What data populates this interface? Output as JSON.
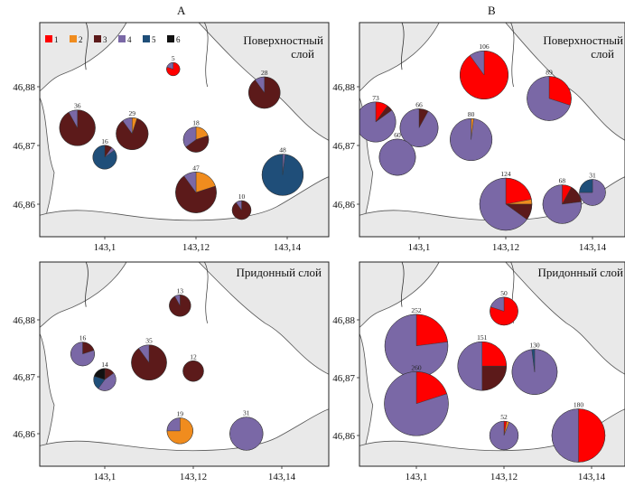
{
  "columns": [
    "А",
    "В"
  ],
  "colors": {
    "1": "#ff0000",
    "2": "#f08c1e",
    "3": "#5c1a1a",
    "4": "#7a68a6",
    "5": "#1f4e79",
    "6": "#111111",
    "water": "#ffffff",
    "land": "#e9e9e9"
  },
  "legend": [
    {
      "key": "1",
      "label": "1"
    },
    {
      "key": "2",
      "label": "2"
    },
    {
      "key": "3",
      "label": "3"
    },
    {
      "key": "4",
      "label": "4"
    },
    {
      "key": "5",
      "label": "5"
    },
    {
      "key": "6",
      "label": "6"
    }
  ],
  "axes": {
    "y_ticks": [
      "46,88",
      "46,87",
      "46,86"
    ],
    "x_ticks": [
      "143,1",
      "143,12",
      "143,14"
    ]
  },
  "panels": [
    {
      "id": "A-surface",
      "layer": "Поверхностный слой",
      "has_legend": true,
      "pies": [
        {
          "label": "5",
          "total": 5,
          "lon": 143.115,
          "lat": 46.883,
          "shares": {
            "1": 0.8,
            "4": 0.2
          }
        },
        {
          "label": "28",
          "total": 28,
          "lon": 143.135,
          "lat": 46.879,
          "shares": {
            "3": 0.9,
            "4": 0.1
          }
        },
        {
          "label": "36",
          "total": 36,
          "lon": 143.094,
          "lat": 46.873,
          "shares": {
            "3": 0.92,
            "4": 0.08
          }
        },
        {
          "label": "29",
          "total": 29,
          "lon": 143.106,
          "lat": 46.872,
          "shares": {
            "3": 0.85,
            "2": 0.05,
            "4": 0.1
          }
        },
        {
          "label": "18",
          "total": 18,
          "lon": 143.12,
          "lat": 46.871,
          "shares": {
            "3": 0.45,
            "2": 0.2,
            "4": 0.35
          }
        },
        {
          "label": "16",
          "total": 16,
          "lon": 143.1,
          "lat": 46.868,
          "shares": {
            "5": 0.85,
            "3": 0.1,
            "4": 0.05
          }
        },
        {
          "label": "47",
          "total": 47,
          "lon": 143.12,
          "lat": 46.862,
          "shares": {
            "3": 0.7,
            "2": 0.2,
            "4": 0.1
          }
        },
        {
          "label": "48",
          "total": 48,
          "lon": 143.139,
          "lat": 46.865,
          "shares": {
            "5": 0.98,
            "4": 0.02
          }
        },
        {
          "label": "10",
          "total": 10,
          "lon": 143.13,
          "lat": 46.859,
          "shares": {
            "3": 0.9,
            "4": 0.1
          }
        }
      ]
    },
    {
      "id": "B-surface",
      "layer": "Поверхностный слой",
      "has_legend": false,
      "pies": [
        {
          "label": "106",
          "total": 106,
          "lon": 143.115,
          "lat": 46.882,
          "shares": {
            "1": 0.9,
            "4": 0.1
          }
        },
        {
          "label": "89",
          "total": 89,
          "lon": 143.13,
          "lat": 46.878,
          "shares": {
            "1": 0.3,
            "4": 0.7
          }
        },
        {
          "label": "73",
          "total": 73,
          "lon": 143.09,
          "lat": 46.874,
          "shares": {
            "1": 0.1,
            "3": 0.05,
            "4": 0.85
          }
        },
        {
          "label": "66",
          "total": 66,
          "lon": 143.1,
          "lat": 46.873,
          "shares": {
            "3": 0.08,
            "4": 0.92
          }
        },
        {
          "label": "80",
          "total": 80,
          "lon": 143.112,
          "lat": 46.871,
          "shares": {
            "2": 0.02,
            "4": 0.98
          }
        },
        {
          "label": "60",
          "total": 60,
          "lon": 143.095,
          "lat": 46.868,
          "shares": {
            "4": 1.0
          }
        },
        {
          "label": "124",
          "total": 124,
          "lon": 143.12,
          "lat": 46.86,
          "shares": {
            "1": 0.22,
            "2": 0.03,
            "3": 0.1,
            "4": 0.65
          }
        },
        {
          "label": "68",
          "total": 68,
          "lon": 143.133,
          "lat": 46.86,
          "shares": {
            "1": 0.08,
            "3": 0.15,
            "4": 0.77
          }
        },
        {
          "label": "31",
          "total": 31,
          "lon": 143.14,
          "lat": 46.862,
          "shares": {
            "5": 0.25,
            "4": 0.75
          }
        }
      ]
    },
    {
      "id": "A-bottom",
      "layer": "Придонный слой",
      "has_legend": false,
      "pies": [
        {
          "label": "13",
          "total": 13,
          "lon": 143.117,
          "lat": 46.8825,
          "shares": {
            "3": 0.92,
            "4": 0.08
          }
        },
        {
          "label": "16",
          "total": 16,
          "lon": 143.095,
          "lat": 46.874,
          "shares": {
            "4": 0.8,
            "3": 0.2
          }
        },
        {
          "label": "35",
          "total": 35,
          "lon": 143.11,
          "lat": 46.8725,
          "shares": {
            "3": 0.9,
            "4": 0.1
          }
        },
        {
          "label": "12",
          "total": 12,
          "lon": 143.12,
          "lat": 46.871,
          "shares": {
            "3": 1.0
          }
        },
        {
          "label": "14",
          "total": 14,
          "lon": 143.1,
          "lat": 46.8695,
          "shares": {
            "4": 0.45,
            "6": 0.2,
            "3": 0.15,
            "5": 0.2
          }
        },
        {
          "label": "19",
          "total": 19,
          "lon": 143.117,
          "lat": 46.8605,
          "shares": {
            "2": 0.75,
            "4": 0.25
          }
        },
        {
          "label": "31",
          "total": 31,
          "lon": 143.132,
          "lat": 46.86,
          "shares": {
            "4": 1.0
          }
        }
      ]
    },
    {
      "id": "B-bottom",
      "layer": "Придонный слой",
      "has_legend": false,
      "pies": [
        {
          "label": "50",
          "total": 50,
          "lon": 143.12,
          "lat": 46.8815,
          "shares": {
            "1": 0.8,
            "4": 0.2
          }
        },
        {
          "label": "252",
          "total": 252,
          "lon": 143.1,
          "lat": 46.8755,
          "shares": {
            "1": 0.23,
            "4": 0.77
          }
        },
        {
          "label": "151",
          "total": 151,
          "lon": 143.115,
          "lat": 46.872,
          "shares": {
            "1": 0.25,
            "3": 0.25,
            "4": 0.5
          }
        },
        {
          "label": "130",
          "total": 130,
          "lon": 143.127,
          "lat": 46.871,
          "shares": {
            "5": 0.02,
            "4": 0.98
          }
        },
        {
          "label": "260",
          "total": 260,
          "lon": 143.1,
          "lat": 46.8655,
          "shares": {
            "1": 0.2,
            "4": 0.8
          }
        },
        {
          "label": "52",
          "total": 52,
          "lon": 143.12,
          "lat": 46.86,
          "shares": {
            "1": 0.03,
            "2": 0.03,
            "4": 0.94
          }
        },
        {
          "label": "180",
          "total": 180,
          "lon": 143.137,
          "lat": 46.86,
          "shares": {
            "1": 0.5,
            "4": 0.5
          }
        }
      ]
    }
  ]
}
